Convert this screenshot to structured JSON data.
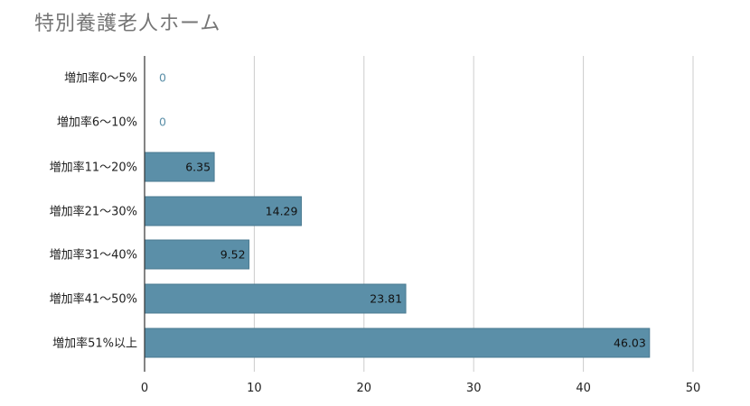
{
  "chart_data": {
    "type": "bar",
    "orientation": "horizontal",
    "title": "特別養護老人ホーム",
    "categories": [
      "増加率0～5%",
      "増加率6～10%",
      "増加率11～20%",
      "増加率21～30%",
      "増加率31～40%",
      "増加率41～50%",
      "増加率51%以上"
    ],
    "values": [
      0,
      0,
      6.35,
      14.29,
      9.52,
      23.81,
      46.03
    ],
    "value_labels": [
      "0",
      "0",
      "6.35",
      "14.29",
      "9.52",
      "23.81",
      "46.03"
    ],
    "xlim": [
      0,
      50
    ],
    "xticks": [
      0,
      10,
      20,
      30,
      40,
      50
    ],
    "xtick_labels": [
      "0",
      "10",
      "20",
      "30",
      "40",
      "50"
    ],
    "grid": "vertical",
    "legend": "none",
    "colors": {
      "bar": "#5b8fa8",
      "bar_stroke": "#4a7a91",
      "grid": "#cccccc",
      "axis": "#333333",
      "label_inside": "#111111",
      "label_zero": "#5b8fa8",
      "title": "#757575"
    }
  }
}
